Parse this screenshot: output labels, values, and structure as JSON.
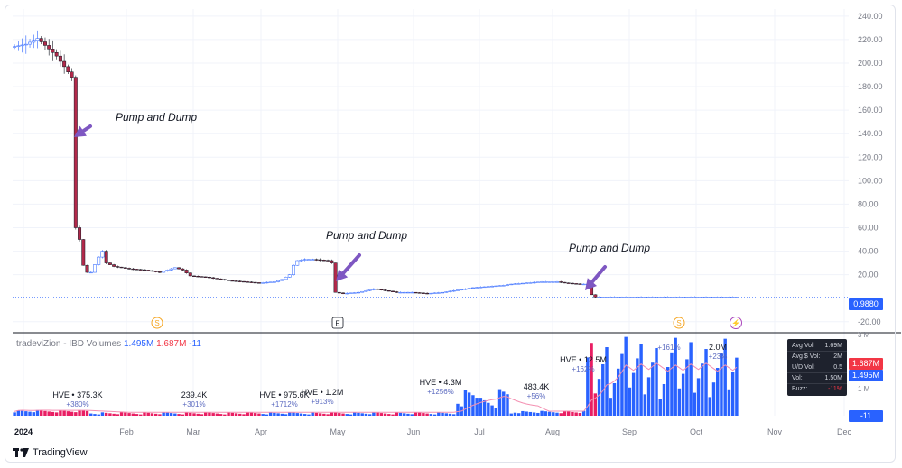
{
  "chart_data": {
    "type": "candlestick",
    "price_axis": {
      "ticks": [
        "240.00",
        "220.00",
        "200.00",
        "180.00",
        "160.00",
        "140.00",
        "120.00",
        "100.00",
        "80.00",
        "60.00",
        "40.00",
        "20.00",
        "-20.00"
      ],
      "tick_values": [
        240,
        220,
        200,
        180,
        160,
        140,
        120,
        100,
        80,
        60,
        40,
        20,
        -20
      ],
      "ylim": [
        -24,
        246
      ],
      "last_price_label": "0.9880",
      "last_price": 0.988
    },
    "time_axis": {
      "labels": [
        "2024",
        "Feb",
        "Mar",
        "Apr",
        "May",
        "Jun",
        "Jul",
        "Aug",
        "Sep",
        "Oct",
        "Nov",
        "Dec"
      ]
    },
    "price_path": [
      [
        0,
        214
      ],
      [
        3,
        216
      ],
      [
        6,
        221
      ],
      [
        9,
        212
      ],
      [
        11,
        206
      ],
      [
        13,
        197
      ],
      [
        15,
        188
      ],
      [
        16,
        60
      ],
      [
        17,
        50
      ],
      [
        18,
        28
      ],
      [
        19,
        22
      ],
      [
        20,
        22
      ],
      [
        22,
        35
      ],
      [
        23,
        40
      ],
      [
        24,
        30
      ],
      [
        26,
        27
      ],
      [
        30,
        25
      ],
      [
        34,
        24
      ],
      [
        38,
        22
      ],
      [
        40,
        24
      ],
      [
        42,
        26
      ],
      [
        44,
        24
      ],
      [
        46,
        19
      ],
      [
        50,
        18
      ],
      [
        54,
        16
      ],
      [
        56,
        15
      ],
      [
        60,
        14
      ],
      [
        64,
        13
      ],
      [
        68,
        14
      ],
      [
        70,
        16
      ],
      [
        72,
        20
      ],
      [
        73,
        28
      ],
      [
        74,
        32
      ],
      [
        76,
        33
      ],
      [
        78,
        33
      ],
      [
        82,
        32
      ],
      [
        83,
        30
      ],
      [
        84,
        5
      ],
      [
        86,
        4
      ],
      [
        90,
        5
      ],
      [
        94,
        8
      ],
      [
        96,
        7
      ],
      [
        100,
        5
      ],
      [
        104,
        5
      ],
      [
        108,
        4
      ],
      [
        112,
        5
      ],
      [
        116,
        7
      ],
      [
        120,
        9
      ],
      [
        124,
        10
      ],
      [
        128,
        11
      ],
      [
        130,
        12
      ],
      [
        134,
        13
      ],
      [
        138,
        14
      ],
      [
        142,
        14
      ],
      [
        144,
        13
      ],
      [
        148,
        12
      ],
      [
        150,
        12
      ],
      [
        151,
        3
      ],
      [
        152,
        1
      ],
      [
        160,
        1
      ],
      [
        170,
        1
      ],
      [
        180,
        1
      ],
      [
        190,
        1
      ]
    ],
    "annotations": [
      {
        "text": "Pump and Dump"
      },
      {
        "text": "Pump and Dump"
      },
      {
        "text": "Pump and Dump"
      }
    ],
    "event_markers": [
      {
        "icon": "dividend-icon",
        "symbol": "S"
      },
      {
        "icon": "earnings-icon",
        "symbol": "E"
      },
      {
        "icon": "dividend-icon",
        "symbol": "S"
      },
      {
        "icon": "lightning-icon",
        "symbol": "⚡"
      }
    ],
    "volume": {
      "indicator_title": "tradeviZion - IBD Volumes",
      "value1": "1.495M",
      "value2": "1.687M",
      "value3": "-11",
      "axis_ticks": [
        "3 M",
        "1 M"
      ],
      "tags": [
        {
          "label": "1.687M",
          "color": "#f23645"
        },
        {
          "label": "1.495M",
          "color": "#2962ff"
        },
        {
          "label": "-11",
          "color": "#2962ff"
        }
      ],
      "hve_labels": [
        {
          "line1": "HVE • 375.3K",
          "line2": "+380%"
        },
        {
          "line1": "239.4K",
          "line2": "+301%"
        },
        {
          "line1": "HVE • 975.6K",
          "line2": "+1712%"
        },
        {
          "line1": "HVE • 1.2M",
          "line2": "+913%"
        },
        {
          "line1": "HVE • 4.3M",
          "line2": "+1256%"
        },
        {
          "line1": "483.4K",
          "line2": "+56%"
        },
        {
          "line1": "HVE • 12.5M",
          "line2": "+162%"
        },
        {
          "line1": "",
          "line2": "+161%"
        },
        {
          "line1": "2.0M",
          "line2": "+23%"
        }
      ]
    }
  },
  "stats_panel": {
    "rows": [
      {
        "label": "Avg Vol:",
        "value": "1.69M"
      },
      {
        "label": "Avg $ Vol:",
        "value": "2M"
      },
      {
        "label": "U/D Vol:",
        "value": "0.5"
      },
      {
        "label": "Vol:",
        "value": "1.50M"
      },
      {
        "label": "Buzz:",
        "value": "-11%"
      }
    ]
  },
  "branding": {
    "text": "TradingView"
  },
  "colors": {
    "up": "#2962ff",
    "down": "#e91e63",
    "candle_down": "#b2294a",
    "arrow": "#7e57c2",
    "grid": "#f0f3fa",
    "axis_text": "#787b86"
  }
}
